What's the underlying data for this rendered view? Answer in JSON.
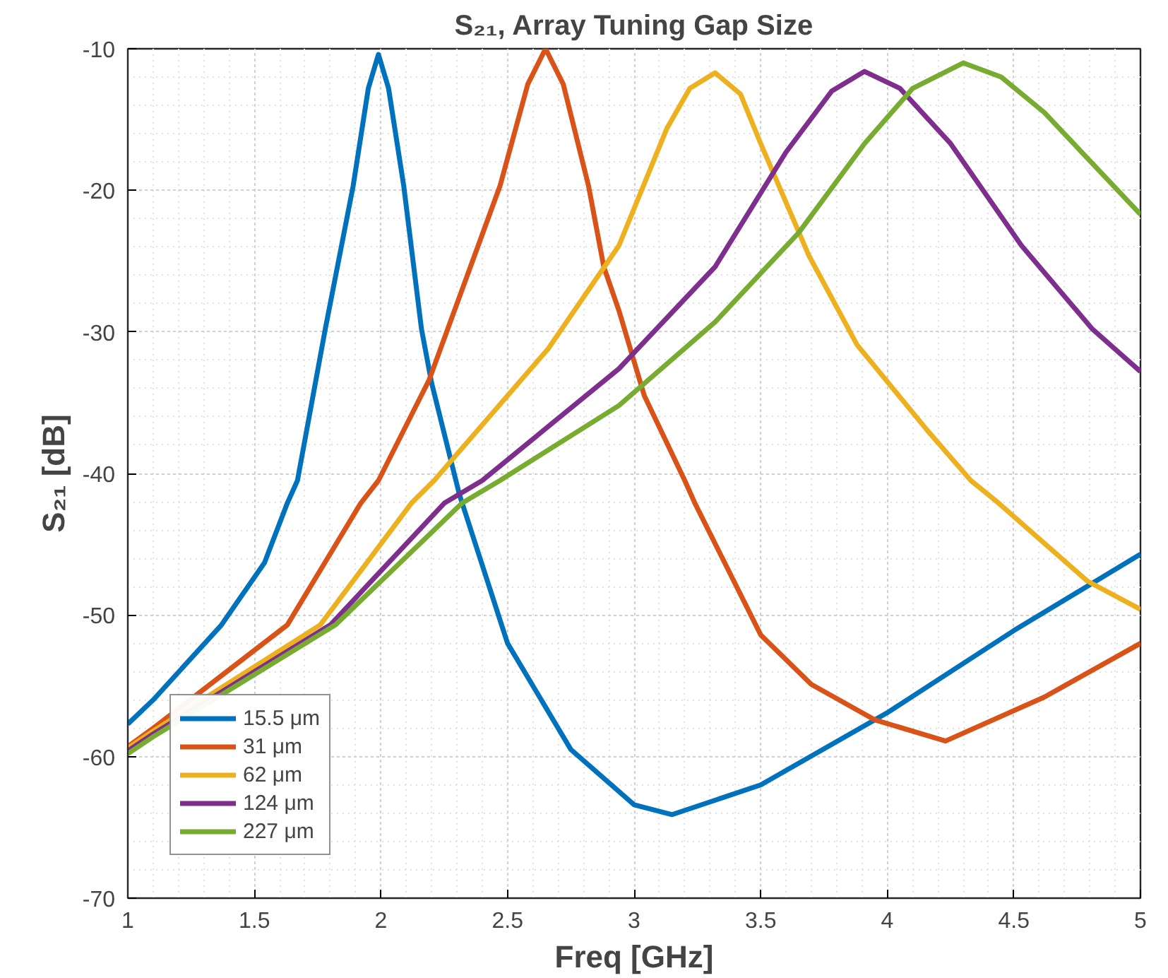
{
  "chart_data": {
    "type": "line",
    "title": "S₂₁, Array Tuning Gap Size",
    "xlabel": "Freq [GHz]",
    "ylabel": "S₂₁ [dB]",
    "xlim": [
      1,
      5
    ],
    "ylim": [
      -70,
      -10
    ],
    "xticks": [
      1,
      1.5,
      2,
      2.5,
      3,
      3.5,
      4,
      4.5,
      5
    ],
    "yticks": [
      -70,
      -60,
      -50,
      -40,
      -30,
      -20,
      -10
    ],
    "grid": true,
    "legend": "bottom left",
    "line_style": "solid",
    "series": [
      {
        "name": "15.5 μm",
        "color": "#0072bd",
        "x": [
          1,
          1.1,
          1.37,
          1.54,
          1.63,
          1.67,
          1.78,
          1.89,
          1.95,
          1.99,
          2.03,
          2.09,
          2.16,
          2.2,
          2.31,
          2.5,
          2.75,
          3,
          3.15,
          3.5,
          4,
          4.5,
          5
        ],
        "values": [
          -57.7,
          -56,
          -50.7,
          -46.3,
          -42.1,
          -40.5,
          -29.8,
          -19.7,
          -12.8,
          -10.4,
          -12.8,
          -19.7,
          -29.8,
          -33.6,
          -41.5,
          -52,
          -59.5,
          -63.4,
          -64.1,
          -62,
          -56.9,
          -51.1,
          -45.7
        ]
      },
      {
        "name": "31 μm",
        "color": "#d95319",
        "x": [
          1,
          1.1,
          1.63,
          1.92,
          1.99,
          2.19,
          2.47,
          2.58,
          2.65,
          2.72,
          2.82,
          2.88,
          2.94,
          3.04,
          3.2,
          3.24,
          3.5,
          3.7,
          3.95,
          4.23,
          4.62,
          5
        ],
        "values": [
          -59.3,
          -58,
          -50.7,
          -42.1,
          -40.5,
          -33.4,
          -19.7,
          -12.5,
          -10,
          -12.5,
          -19.7,
          -25.4,
          -28.5,
          -34.5,
          -40.5,
          -42.1,
          -51.4,
          -54.9,
          -57.4,
          -58.9,
          -55.8,
          -52
        ]
      },
      {
        "name": "62 μm",
        "color": "#edb120",
        "x": [
          1,
          1.1,
          1.76,
          2.12,
          2.21,
          2.66,
          2.94,
          3.13,
          3.22,
          3.32,
          3.42,
          3.5,
          3.69,
          3.88,
          4.16,
          4.33,
          4.44,
          4.79,
          5
        ],
        "values": [
          -59.4,
          -58.2,
          -50.7,
          -42.1,
          -40.5,
          -31.2,
          -23.9,
          -15.6,
          -12.8,
          -11.7,
          -13.2,
          -16.7,
          -24.6,
          -30.9,
          -37,
          -40.5,
          -42.1,
          -47.6,
          -49.6
        ]
      },
      {
        "name": "124 μm",
        "color": "#7e2f8e",
        "x": [
          1,
          1.1,
          1.8,
          2.25,
          2.4,
          2.94,
          3.32,
          3.6,
          3.78,
          3.91,
          4.05,
          4.25,
          4.53,
          4.81,
          5
        ],
        "values": [
          -59.6,
          -58.4,
          -50.7,
          -42.1,
          -40.5,
          -32.6,
          -25.4,
          -17.3,
          -13,
          -11.6,
          -12.8,
          -16.7,
          -23.9,
          -29.8,
          -32.8
        ]
      },
      {
        "name": "227 μm",
        "color": "#77ac30",
        "x": [
          1,
          1.1,
          1.82,
          2.32,
          2.47,
          2.94,
          3.32,
          3.65,
          3.91,
          4.1,
          4.3,
          4.45,
          4.62,
          5
        ],
        "values": [
          -59.8,
          -58.6,
          -50.7,
          -42.1,
          -40.5,
          -35.2,
          -29.3,
          -23,
          -16.7,
          -12.8,
          -11,
          -12,
          -14.5,
          -21.7
        ]
      }
    ]
  }
}
